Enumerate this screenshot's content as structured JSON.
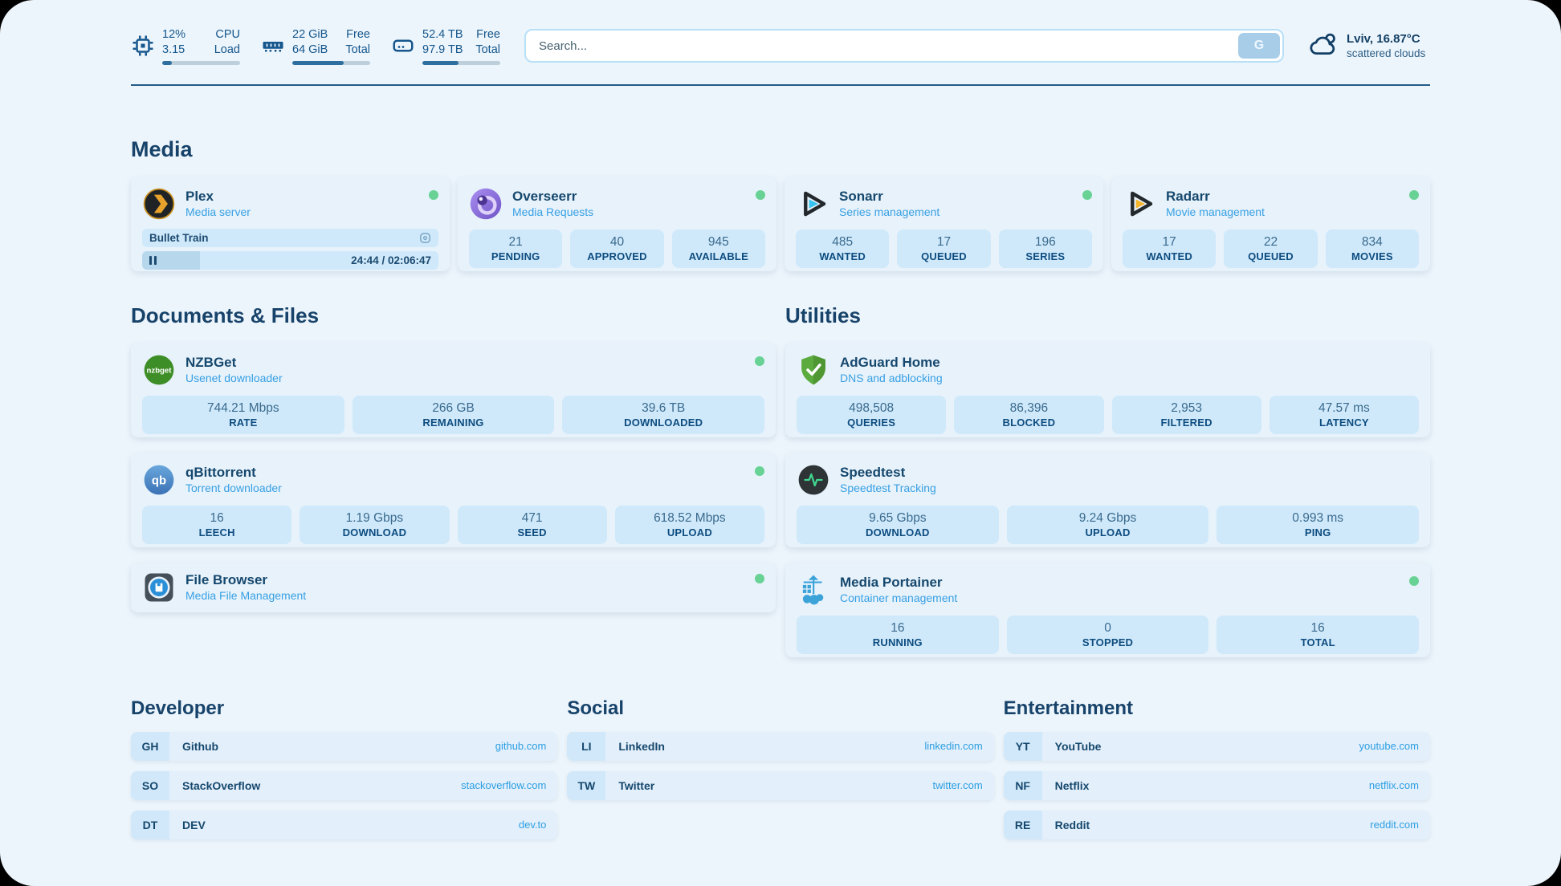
{
  "header": {
    "system_stats": [
      {
        "icon": "cpu-icon",
        "value1": "12%",
        "label1": "CPU",
        "value2": "3.15",
        "label2": "Load",
        "progress_pct": 12
      },
      {
        "icon": "ram-icon",
        "value1": "22 GiB",
        "label1": "Free",
        "value2": "64 GiB",
        "label2": "Total",
        "progress_pct": 66
      },
      {
        "icon": "disk-icon",
        "value1": "52.4 TB",
        "label1": "Free",
        "value2": "97.9 TB",
        "label2": "Total",
        "progress_pct": 46
      }
    ],
    "search": {
      "placeholder": "Search...",
      "button_label": "G"
    },
    "weather": {
      "location_temperature": "Lviv, 16.87°C",
      "condition": "scattered clouds"
    }
  },
  "media": {
    "title": "Media",
    "plex": {
      "name": "Plex",
      "subtitle": "Media server",
      "online": true,
      "now_playing": "Bullet Train",
      "time_display": "24:44 / 02:06:47",
      "progress_pct": 19.5
    },
    "overseerr": {
      "name": "Overseerr",
      "subtitle": "Media Requests",
      "online": true,
      "stats": [
        {
          "value": "21",
          "label": "PENDING"
        },
        {
          "value": "40",
          "label": "APPROVED"
        },
        {
          "value": "945",
          "label": "AVAILABLE"
        }
      ]
    },
    "sonarr": {
      "name": "Sonarr",
      "subtitle": "Series management",
      "online": true,
      "stats": [
        {
          "value": "485",
          "label": "WANTED"
        },
        {
          "value": "17",
          "label": "QUEUED"
        },
        {
          "value": "196",
          "label": "SERIES"
        }
      ]
    },
    "radarr": {
      "name": "Radarr",
      "subtitle": "Movie management",
      "online": true,
      "stats": [
        {
          "value": "17",
          "label": "WANTED"
        },
        {
          "value": "22",
          "label": "QUEUED"
        },
        {
          "value": "834",
          "label": "MOVIES"
        }
      ]
    }
  },
  "documents": {
    "title": "Documents & Files",
    "nzbget": {
      "name": "NZBGet",
      "subtitle": "Usenet downloader",
      "online": true,
      "stats": [
        {
          "value": "744.21 Mbps",
          "label": "RATE"
        },
        {
          "value": "266 GB",
          "label": "REMAINING"
        },
        {
          "value": "39.6 TB",
          "label": "DOWNLOADED"
        }
      ]
    },
    "qbittorrent": {
      "name": "qBittorrent",
      "subtitle": "Torrent downloader",
      "online": true,
      "stats": [
        {
          "value": "16",
          "label": "LEECH"
        },
        {
          "value": "1.19 Gbps",
          "label": "DOWNLOAD"
        },
        {
          "value": "471",
          "label": "SEED"
        },
        {
          "value": "618.52 Mbps",
          "label": "UPLOAD"
        }
      ]
    },
    "filebrowser": {
      "name": "File Browser",
      "subtitle": "Media File Management",
      "online": true
    }
  },
  "utilities": {
    "title": "Utilities",
    "adguard": {
      "name": "AdGuard Home",
      "subtitle": "DNS and adblocking",
      "online": false,
      "stats": [
        {
          "value": "498,508",
          "label": "QUERIES"
        },
        {
          "value": "86,396",
          "label": "BLOCKED"
        },
        {
          "value": "2,953",
          "label": "FILTERED"
        },
        {
          "value": "47.57 ms",
          "label": "LATENCY"
        }
      ]
    },
    "speedtest": {
      "name": "Speedtest",
      "subtitle": "Speedtest Tracking",
      "online": false,
      "stats": [
        {
          "value": "9.65 Gbps",
          "label": "DOWNLOAD"
        },
        {
          "value": "9.24 Gbps",
          "label": "UPLOAD"
        },
        {
          "value": "0.993 ms",
          "label": "PING"
        }
      ]
    },
    "portainer": {
      "name": "Media Portainer",
      "subtitle": "Container management",
      "online": true,
      "stats": [
        {
          "value": "16",
          "label": "RUNNING"
        },
        {
          "value": "0",
          "label": "STOPPED"
        },
        {
          "value": "16",
          "label": "TOTAL"
        }
      ]
    }
  },
  "links": {
    "developer": {
      "title": "Developer",
      "items": [
        {
          "abbr": "GH",
          "name": "Github",
          "url": "github.com"
        },
        {
          "abbr": "SO",
          "name": "StackOverflow",
          "url": "stackoverflow.com"
        },
        {
          "abbr": "DT",
          "name": "DEV",
          "url": "dev.to"
        }
      ]
    },
    "social": {
      "title": "Social",
      "items": [
        {
          "abbr": "LI",
          "name": "LinkedIn",
          "url": "linkedin.com"
        },
        {
          "abbr": "TW",
          "name": "Twitter",
          "url": "twitter.com"
        }
      ]
    },
    "entertainment": {
      "title": "Entertainment",
      "items": [
        {
          "abbr": "YT",
          "name": "YouTube",
          "url": "youtube.com"
        },
        {
          "abbr": "NF",
          "name": "Netflix",
          "url": "netflix.com"
        },
        {
          "abbr": "RE",
          "name": "Reddit",
          "url": "reddit.com"
        }
      ]
    }
  },
  "colors": {
    "page_bg": "#edf5fc",
    "card_bg": "#e7f2fb",
    "stat_bg": "#cfe9fb",
    "navy": "#16486e",
    "accent_blue": "#2d9fe3",
    "online_green": "#67d294",
    "progress_fill": "#2e6f9f"
  }
}
